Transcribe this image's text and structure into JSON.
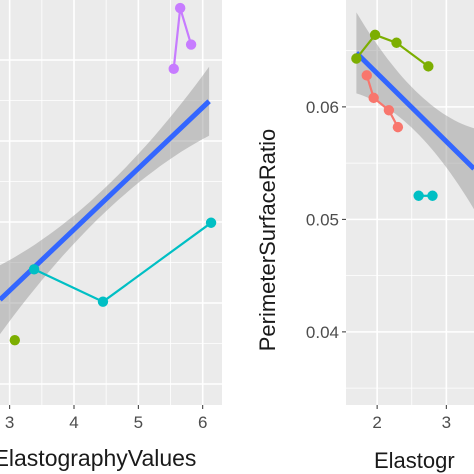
{
  "chart_data": [
    {
      "type": "scatter",
      "title": "",
      "xlabel": "ElastographyValues",
      "ylabel": "",
      "xlim": [
        2.85,
        6.3
      ],
      "ylim": [
        0,
        1
      ],
      "x_ticks": [
        3,
        4,
        5,
        6
      ],
      "x_tick_labels": [
        "3",
        "4",
        "5",
        "6"
      ],
      "grid": true,
      "smooth": {
        "method": "lm",
        "color": "#3366ff",
        "x": [
          2.85,
          6.1
        ],
        "y": [
          0.26,
          0.75
        ],
        "se_band": true
      },
      "series": [
        {
          "color": "#c77cff",
          "x": [
            5.55,
            5.65,
            5.82
          ],
          "y": [
            0.83,
            0.98,
            0.89
          ]
        },
        {
          "color": "#00bfc4",
          "x": [
            3.38,
            4.45,
            6.13
          ],
          "y": [
            0.335,
            0.255,
            0.45
          ]
        },
        {
          "color": "#7cae00",
          "x": [
            3.08
          ],
          "y": [
            0.16
          ]
        }
      ]
    },
    {
      "type": "scatter",
      "title": "",
      "xlabel": "Elastogr",
      "ylabel": "PerimeterSurfaceRatio",
      "xlim": [
        1.55,
        3.4
      ],
      "ylim": [
        0.0335,
        0.0695
      ],
      "x_ticks": [
        2,
        3
      ],
      "x_tick_labels": [
        "2",
        "3"
      ],
      "y_ticks": [
        0.04,
        0.05,
        0.06
      ],
      "y_tick_labels": [
        "0.04",
        "0.05",
        "0.06"
      ],
      "grid": true,
      "smooth": {
        "method": "lm",
        "color": "#3366ff",
        "x": [
          1.7,
          3.4
        ],
        "y": [
          0.0648,
          0.0545
        ],
        "se_band": true
      },
      "series": [
        {
          "color": "#7cae00",
          "x": [
            1.7,
            1.97,
            2.28,
            2.74
          ],
          "y": [
            0.0643,
            0.0664,
            0.0657,
            0.0636
          ]
        },
        {
          "color": "#f8766d",
          "x": [
            1.85,
            1.95,
            2.17,
            2.3
          ],
          "y": [
            0.0628,
            0.0608,
            0.0597,
            0.0582
          ]
        },
        {
          "color": "#00bfc4",
          "x": [
            2.6,
            2.8
          ],
          "y": [
            0.0521,
            0.0521
          ]
        }
      ]
    }
  ]
}
